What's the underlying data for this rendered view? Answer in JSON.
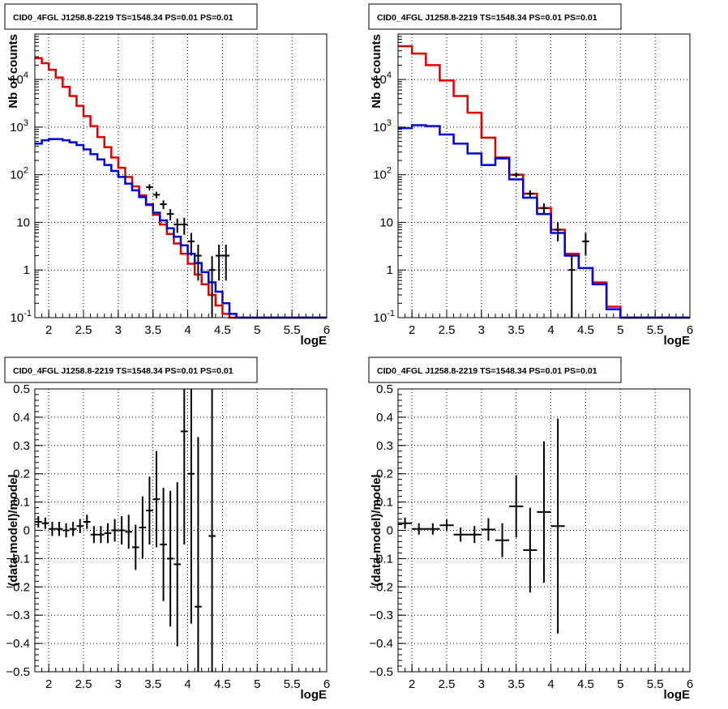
{
  "chart_data": [
    {
      "type": "line",
      "title": "CID0_4FGL J1258.8-2219 TS=1548.34 PS=0.01 PS=0.01",
      "xlabel": "logE",
      "ylabel": "Nb of counts",
      "xlim": [
        1.8,
        6
      ],
      "ylim": [
        0.1,
        90000
      ],
      "ylog": true,
      "grid": true,
      "xticks": [
        "2",
        "2.5",
        "3",
        "3.5",
        "4",
        "4.5",
        "5",
        "5.5",
        "6"
      ],
      "yticks": [
        "10^-1",
        "1",
        "10",
        "10^2",
        "10^3",
        "10^4"
      ],
      "bin_edges": [
        1.8,
        1.9,
        2.0,
        2.1,
        2.2,
        2.3,
        2.4,
        2.5,
        2.6,
        2.7,
        2.8,
        2.9,
        3.0,
        3.1,
        3.2,
        3.3,
        3.4,
        3.5,
        3.6,
        3.7,
        3.8,
        3.9,
        4.0,
        4.1,
        4.2,
        4.3,
        4.4,
        4.5,
        4.6,
        4.7,
        4.8,
        4.9,
        5.0,
        5.1,
        5.2,
        5.3,
        5.4,
        5.5,
        5.6,
        5.7,
        5.8,
        5.9,
        6.0
      ],
      "series": [
        {
          "color": "#dd0000",
          "values": [
            28000,
            22000,
            16000,
            11000,
            7000,
            4500,
            2800,
            1700,
            1050,
            620,
            380,
            230,
            140,
            90,
            57,
            37,
            23,
            14.5,
            9,
            5.7,
            3.6,
            2.2,
            1.35,
            0.8,
            0.5,
            0.3,
            0.18,
            0.12,
            0.1,
            0.1,
            0.1,
            0.1,
            0.1,
            0.1,
            0.1,
            0.1,
            0.1,
            0.1,
            0.1,
            0.1,
            0.1,
            0.1
          ]
        },
        {
          "color": "#0000dd",
          "values": [
            450,
            530,
            560,
            560,
            530,
            480,
            420,
            340,
            270,
            210,
            160,
            120,
            90,
            65,
            47,
            34,
            24,
            16,
            11,
            7.5,
            5,
            3.3,
            2.2,
            1.4,
            0.9,
            0.55,
            0.35,
            0.2,
            0.12,
            0.1,
            0.1,
            0.1,
            0.1,
            0.1,
            0.1,
            0.1,
            0.1,
            0.1,
            0.1,
            0.1,
            0.1,
            0.1
          ]
        }
      ],
      "points": [
        {
          "x": 3.45,
          "y": 55,
          "yerr": 8
        },
        {
          "x": 3.55,
          "y": 38,
          "yerr": 6
        },
        {
          "x": 3.65,
          "y": 24,
          "yerr": 5
        },
        {
          "x": 3.75,
          "y": 15,
          "yerr": 4
        },
        {
          "x": 3.85,
          "y": 9,
          "yerr": 3
        },
        {
          "x": 3.95,
          "y": 9,
          "yerr": 3.5
        },
        {
          "x": 4.05,
          "y": 4,
          "yerr": 2
        },
        {
          "x": 4.15,
          "y": 2,
          "yerr": 1.4
        },
        {
          "x": 4.35,
          "y": 1,
          "yerr": 0.95
        },
        {
          "x": 4.45,
          "y": 2,
          "yerr": 1.4
        },
        {
          "x": 4.55,
          "y": 2,
          "yerr": 1.4
        }
      ]
    },
    {
      "type": "line",
      "title": "CID0_4FGL J1258.8-2219 TS=1548.34 PS=0.01 PS=0.01",
      "xlabel": "logE",
      "ylabel": "Nb of counts",
      "xlim": [
        1.8,
        6
      ],
      "ylim": [
        0.1,
        90000
      ],
      "ylog": true,
      "grid": true,
      "xticks": [
        "2",
        "2.5",
        "3",
        "3.5",
        "4",
        "4.5",
        "5",
        "5.5",
        "6"
      ],
      "yticks": [
        "10^-1",
        "1",
        "10",
        "10^2",
        "10^3",
        "10^4"
      ],
      "bin_edges": [
        1.8,
        2.0,
        2.2,
        2.4,
        2.6,
        2.8,
        3.0,
        3.2,
        3.4,
        3.6,
        3.8,
        4.0,
        4.2,
        4.4,
        4.6,
        4.8,
        5.0,
        5.2,
        5.4,
        5.6,
        5.8,
        6.0
      ],
      "series": [
        {
          "color": "#dd0000",
          "values": [
            50000,
            35000,
            20000,
            9500,
            4500,
            2000,
            600,
            230,
            100,
            40,
            20,
            7,
            2.2,
            1.1,
            0.55,
            0.17,
            0.1,
            0.1,
            0.1,
            0.1,
            0.1
          ]
        },
        {
          "color": "#0000dd",
          "values": [
            950,
            1100,
            1050,
            700,
            450,
            280,
            160,
            220,
            80,
            33,
            15,
            6,
            2,
            1.1,
            0.5,
            0.15,
            0.1,
            0.1,
            0.1,
            0.1,
            0.1
          ]
        }
      ],
      "points": [
        {
          "x": 3.5,
          "y": 100,
          "yerr": 12
        },
        {
          "x": 3.7,
          "y": 40,
          "yerr": 7
        },
        {
          "x": 3.9,
          "y": 20,
          "yerr": 5
        },
        {
          "x": 4.1,
          "y": 7,
          "yerr": 3
        },
        {
          "x": 4.3,
          "y": 1,
          "yerr": 0.95
        },
        {
          "x": 4.5,
          "y": 4,
          "yerr": 2
        }
      ]
    },
    {
      "type": "scatter",
      "title": "CID0_4FGL J1258.8-2219 TS=1548.34 PS=0.01 PS=0.01",
      "xlabel": "logE",
      "ylabel": "(data-model)/model",
      "xlim": [
        1.8,
        6
      ],
      "ylim": [
        -0.5,
        0.5
      ],
      "grid": true,
      "xticks": [
        "2",
        "2.5",
        "3",
        "3.5",
        "4",
        "4.5",
        "5",
        "5.5",
        "6"
      ],
      "yticks": [
        "-0.5",
        "-0.4",
        "-0.3",
        "-0.2",
        "-0.1",
        "0",
        "0.1",
        "0.2",
        "0.3",
        "0.4",
        "0.5"
      ],
      "xhalf": 0.05,
      "points": [
        {
          "x": 1.85,
          "y": 0.03,
          "yerr": 0.02
        },
        {
          "x": 1.95,
          "y": 0.025,
          "yerr": 0.02
        },
        {
          "x": 2.05,
          "y": 0.005,
          "yerr": 0.025
        },
        {
          "x": 2.15,
          "y": 0.005,
          "yerr": 0.025
        },
        {
          "x": 2.25,
          "y": 0.0,
          "yerr": 0.025
        },
        {
          "x": 2.35,
          "y": 0.005,
          "yerr": 0.025
        },
        {
          "x": 2.45,
          "y": 0.015,
          "yerr": 0.025
        },
        {
          "x": 2.55,
          "y": 0.03,
          "yerr": 0.025
        },
        {
          "x": 2.65,
          "y": -0.015,
          "yerr": 0.03
        },
        {
          "x": 2.75,
          "y": -0.015,
          "yerr": 0.03
        },
        {
          "x": 2.85,
          "y": -0.01,
          "yerr": 0.035
        },
        {
          "x": 2.95,
          "y": 0.0,
          "yerr": 0.04
        },
        {
          "x": 3.05,
          "y": 0.0,
          "yerr": 0.05
        },
        {
          "x": 3.15,
          "y": -0.005,
          "yerr": 0.06
        },
        {
          "x": 3.25,
          "y": -0.06,
          "yerr": 0.08
        },
        {
          "x": 3.35,
          "y": 0.01,
          "yerr": 0.11
        },
        {
          "x": 3.45,
          "y": 0.07,
          "yerr": 0.12
        },
        {
          "x": 3.55,
          "y": 0.11,
          "yerr": 0.17
        },
        {
          "x": 3.65,
          "y": -0.05,
          "yerr": 0.2
        },
        {
          "x": 3.75,
          "y": -0.1,
          "yerr": 0.24
        },
        {
          "x": 3.85,
          "y": -0.12,
          "yerr": 0.29
        },
        {
          "x": 3.95,
          "y": 0.35,
          "yerr": 0.4
        },
        {
          "x": 4.05,
          "y": 0.2,
          "yerr": 0.53
        },
        {
          "x": 4.15,
          "y": -0.27,
          "yerr": 0.6
        },
        {
          "x": 4.35,
          "y": -0.02,
          "yerr": 1.0
        }
      ]
    },
    {
      "type": "scatter",
      "title": "CID0_4FGL J1258.8-2219 TS=1548.34 PS=0.01 PS=0.01",
      "xlabel": "logE",
      "ylabel": "(data-model)/model",
      "xlim": [
        1.8,
        6
      ],
      "ylim": [
        -0.5,
        0.5
      ],
      "grid": true,
      "xticks": [
        "2",
        "2.5",
        "3",
        "3.5",
        "4",
        "4.5",
        "5",
        "5.5",
        "6"
      ],
      "yticks": [
        "-0.5",
        "-0.4",
        "-0.3",
        "-0.2",
        "-0.1",
        "0",
        "0.1",
        "0.2",
        "0.3",
        "0.4",
        "0.5"
      ],
      "xhalf": 0.1,
      "points": [
        {
          "x": 1.9,
          "y": 0.025,
          "yerr": 0.02
        },
        {
          "x": 2.1,
          "y": 0.005,
          "yerr": 0.02
        },
        {
          "x": 2.3,
          "y": 0.005,
          "yerr": 0.02
        },
        {
          "x": 2.5,
          "y": 0.018,
          "yerr": 0.02
        },
        {
          "x": 2.7,
          "y": -0.015,
          "yerr": 0.025
        },
        {
          "x": 2.9,
          "y": -0.015,
          "yerr": 0.03
        },
        {
          "x": 3.1,
          "y": 0.003,
          "yerr": 0.04
        },
        {
          "x": 3.3,
          "y": -0.035,
          "yerr": 0.06
        },
        {
          "x": 3.5,
          "y": 0.085,
          "yerr": 0.11
        },
        {
          "x": 3.7,
          "y": -0.07,
          "yerr": 0.15
        },
        {
          "x": 3.9,
          "y": 0.065,
          "yerr": 0.25
        },
        {
          "x": 4.1,
          "y": 0.015,
          "yerr": 0.38
        }
      ]
    }
  ]
}
